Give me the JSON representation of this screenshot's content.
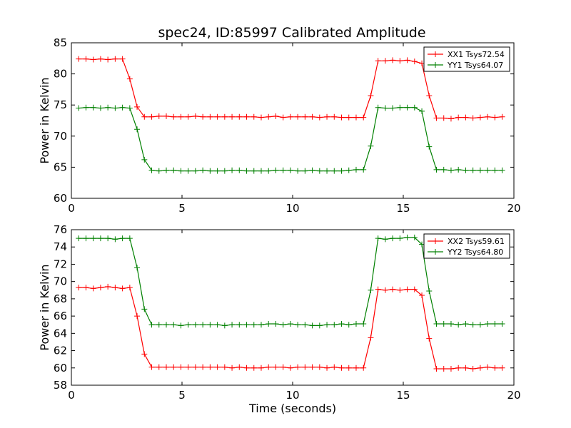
{
  "title": "spec24, ID:85997 Calibrated Amplitude",
  "colors": {
    "xx": "#ff0000",
    "yy": "#008000"
  },
  "chart_data": [
    {
      "type": "line",
      "title": "spec24, ID:85997 Calibrated Amplitude",
      "xlabel": "",
      "ylabel": "Power in Kelvin",
      "xlim": [
        0,
        20
      ],
      "ylim": [
        60,
        85
      ],
      "xticks": [
        0,
        5,
        10,
        15,
        20
      ],
      "yticks": [
        60,
        65,
        70,
        75,
        80,
        85
      ],
      "legend": "top-right",
      "grid": false,
      "x": [
        0.33,
        0.66,
        0.99,
        1.32,
        1.65,
        1.98,
        2.31,
        2.64,
        2.97,
        3.3,
        3.63,
        3.96,
        4.29,
        4.62,
        4.95,
        5.28,
        5.61,
        5.94,
        6.27,
        6.6,
        6.93,
        7.26,
        7.59,
        7.92,
        8.25,
        8.58,
        8.91,
        9.24,
        9.57,
        9.9,
        10.23,
        10.56,
        10.89,
        11.22,
        11.55,
        11.88,
        12.21,
        12.54,
        12.87,
        13.2,
        13.53,
        13.86,
        14.19,
        14.52,
        14.85,
        15.18,
        15.51,
        15.84,
        16.17,
        16.5,
        16.83,
        17.16,
        17.49,
        17.82,
        18.15,
        18.48,
        18.81,
        19.14,
        19.47
      ],
      "series": [
        {
          "name": "XX1 Tsys72.54",
          "color": "#ff0000",
          "values": [
            82.4,
            82.4,
            82.3,
            82.4,
            82.3,
            82.4,
            82.4,
            79.2,
            74.7,
            73.1,
            73.1,
            73.2,
            73.2,
            73.1,
            73.1,
            73.1,
            73.2,
            73.1,
            73.1,
            73.1,
            73.1,
            73.1,
            73.1,
            73.1,
            73.1,
            73.0,
            73.1,
            73.2,
            73.0,
            73.1,
            73.1,
            73.1,
            73.1,
            73.0,
            73.1,
            73.1,
            73.0,
            73.0,
            73.0,
            73.0,
            76.5,
            82.1,
            82.1,
            82.2,
            82.1,
            82.2,
            82.0,
            81.7,
            76.5,
            72.9,
            72.9,
            72.8,
            73.0,
            73.0,
            72.9,
            73.0,
            73.1,
            73.0,
            73.1
          ]
        },
        {
          "name": "YY1 Tsys64.07",
          "color": "#008000",
          "values": [
            74.5,
            74.6,
            74.6,
            74.5,
            74.6,
            74.5,
            74.6,
            74.5,
            71.1,
            66.2,
            64.5,
            64.4,
            64.5,
            64.5,
            64.4,
            64.4,
            64.4,
            64.5,
            64.4,
            64.4,
            64.4,
            64.5,
            64.5,
            64.4,
            64.4,
            64.4,
            64.4,
            64.5,
            64.5,
            64.5,
            64.4,
            64.4,
            64.5,
            64.4,
            64.4,
            64.4,
            64.4,
            64.5,
            64.6,
            64.6,
            68.4,
            74.6,
            74.5,
            74.5,
            74.6,
            74.6,
            74.6,
            74.0,
            68.3,
            64.6,
            64.6,
            64.5,
            64.6,
            64.5,
            64.5,
            64.5,
            64.5,
            64.5,
            64.5
          ]
        }
      ]
    },
    {
      "type": "line",
      "title": "",
      "xlabel": "Time (seconds)",
      "ylabel": "Power in Kelvin",
      "xlim": [
        0,
        20
      ],
      "ylim": [
        58,
        76
      ],
      "xticks": [
        0,
        5,
        10,
        15,
        20
      ],
      "yticks": [
        58,
        60,
        62,
        64,
        66,
        68,
        70,
        72,
        74,
        76
      ],
      "legend": "top-right",
      "grid": false,
      "x": [
        0.33,
        0.66,
        0.99,
        1.32,
        1.65,
        1.98,
        2.31,
        2.64,
        2.97,
        3.3,
        3.63,
        3.96,
        4.29,
        4.62,
        4.95,
        5.28,
        5.61,
        5.94,
        6.27,
        6.6,
        6.93,
        7.26,
        7.59,
        7.92,
        8.25,
        8.58,
        8.91,
        9.24,
        9.57,
        9.9,
        10.23,
        10.56,
        10.89,
        11.22,
        11.55,
        11.88,
        12.21,
        12.54,
        12.87,
        13.2,
        13.53,
        13.86,
        14.19,
        14.52,
        14.85,
        15.18,
        15.51,
        15.84,
        16.17,
        16.5,
        16.83,
        17.16,
        17.49,
        17.82,
        18.15,
        18.48,
        18.81,
        19.14,
        19.47
      ],
      "series": [
        {
          "name": "XX2 Tsys59.61",
          "color": "#ff0000",
          "values": [
            69.3,
            69.3,
            69.2,
            69.3,
            69.4,
            69.3,
            69.2,
            69.3,
            66.0,
            61.6,
            60.1,
            60.1,
            60.1,
            60.1,
            60.1,
            60.1,
            60.1,
            60.1,
            60.1,
            60.1,
            60.1,
            60.0,
            60.1,
            60.0,
            60.0,
            60.0,
            60.1,
            60.1,
            60.1,
            60.0,
            60.1,
            60.1,
            60.1,
            60.1,
            60.0,
            60.1,
            60.0,
            60.0,
            60.0,
            60.0,
            63.5,
            69.1,
            69.0,
            69.1,
            69.0,
            69.1,
            69.1,
            68.4,
            63.4,
            59.9,
            59.9,
            59.9,
            60.0,
            60.0,
            59.9,
            60.0,
            60.1,
            60.0,
            60.0
          ]
        },
        {
          "name": "YY2 Tsys64.80",
          "color": "#008000",
          "values": [
            75.0,
            75.0,
            75.0,
            75.0,
            75.0,
            74.9,
            75.0,
            75.0,
            71.6,
            66.8,
            65.0,
            65.0,
            65.0,
            65.0,
            64.9,
            65.0,
            65.0,
            65.0,
            65.0,
            65.0,
            64.9,
            65.0,
            65.0,
            65.0,
            65.0,
            65.0,
            65.1,
            65.1,
            65.0,
            65.1,
            65.0,
            65.0,
            64.9,
            64.9,
            65.0,
            65.0,
            65.1,
            65.0,
            65.1,
            65.1,
            69.0,
            75.0,
            74.9,
            75.0,
            75.0,
            75.1,
            75.1,
            74.3,
            68.9,
            65.1,
            65.1,
            65.1,
            65.0,
            65.1,
            65.0,
            65.0,
            65.1,
            65.1,
            65.1
          ]
        }
      ]
    }
  ]
}
